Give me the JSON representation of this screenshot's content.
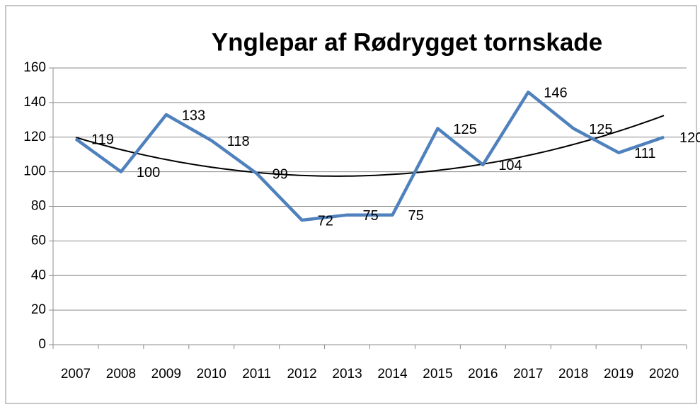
{
  "chart_data": {
    "type": "line",
    "title": "Ynglepar af Rødrygget tornskade",
    "categories": [
      "2007",
      "2008",
      "2009",
      "2010",
      "2011",
      "2012",
      "2013",
      "2014",
      "2015",
      "2016",
      "2017",
      "2018",
      "2019",
      "2020"
    ],
    "values": [
      119,
      100,
      133,
      118,
      99,
      72,
      75,
      75,
      125,
      104,
      146,
      125,
      111,
      120
    ],
    "color": "#4f81bd",
    "ylim": [
      0,
      160
    ],
    "yticks": [
      0,
      20,
      40,
      60,
      80,
      100,
      120,
      140,
      160
    ],
    "grid": true,
    "trendline": {
      "type": "polynomial",
      "order": 2,
      "color": "#000000"
    }
  }
}
